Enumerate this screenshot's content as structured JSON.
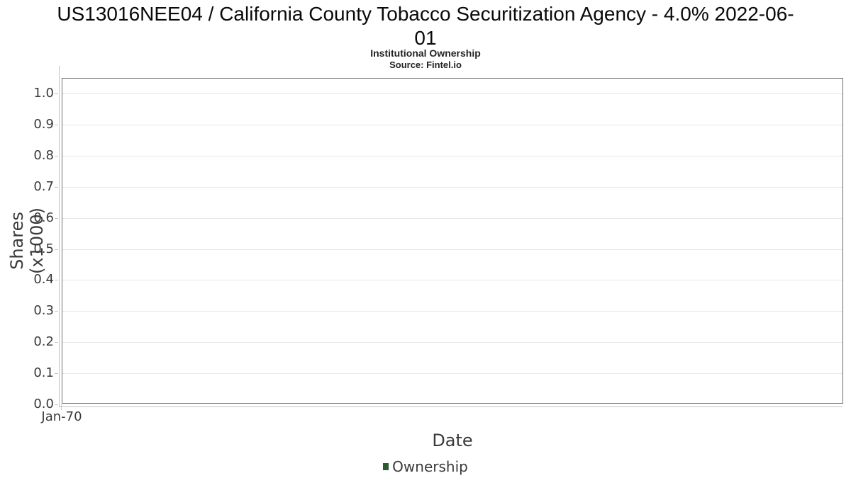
{
  "header": {
    "title_line1": "US13016NEE04 / California County Tobacco Securitization Agency - 4.0% 2022-06-",
    "title_line2": "01",
    "subtitle": "Institutional Ownership",
    "source": "Source: Fintel.io"
  },
  "legend": {
    "items": [
      {
        "label": "Ownership",
        "color": "#2a5c30",
        "swatch": "filled-square"
      }
    ]
  },
  "chart_data": {
    "type": "line",
    "title": "US13016NEE04 / California County Tobacco Securitization Agency - 4.0% 2022-06-01",
    "subtitle": "Institutional Ownership",
    "source": "Source: Fintel.io",
    "xlabel": "Date",
    "ylabel": "Shares (x1000)",
    "xticks": [
      "Jan-70"
    ],
    "yticks": [
      "0.0",
      "0.1",
      "0.2",
      "0.3",
      "0.4",
      "0.5",
      "0.6",
      "0.7",
      "0.8",
      "0.9",
      "1.0"
    ],
    "ylim": [
      0.0,
      1.05
    ],
    "grid": true,
    "legend_position": "bottom-center",
    "series": [
      {
        "name": "Ownership",
        "color": "#2a5c30",
        "x": [],
        "values": []
      }
    ],
    "colors": {
      "plot_border": "#6e6e6e",
      "gridline": "#e7e7e7",
      "axis_line": "#c4c4c4",
      "tick_text": "#3a3a3a",
      "title_text": "#0a0a0a"
    }
  }
}
